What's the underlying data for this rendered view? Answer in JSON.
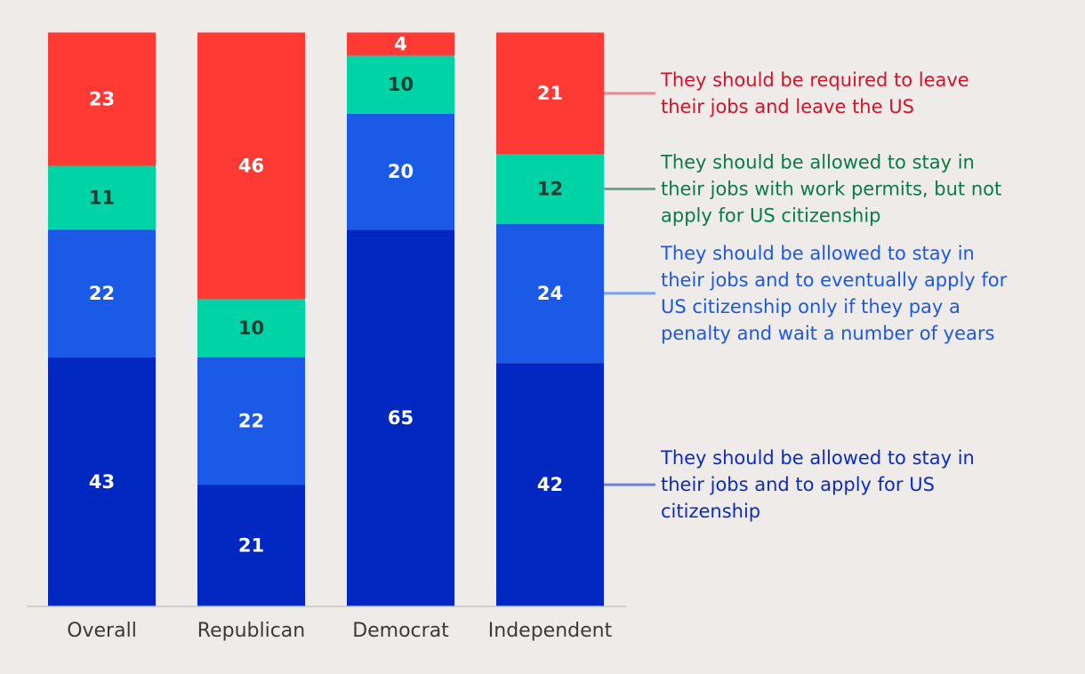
{
  "chart_data": {
    "type": "bar",
    "stacked": true,
    "title": "",
    "xlabel": "",
    "ylabel": "",
    "ylim": [
      0,
      100
    ],
    "categories": [
      "Overall",
      "Republican",
      "Democrat",
      "Independent"
    ],
    "series": [
      {
        "name": "They should be allowed to stay in their jobs and to apply for US citizenship",
        "color": "#0028c0",
        "legend_color": "#0c2cc0",
        "legend_line_color": "#6f82d6",
        "values": [
          43,
          21,
          65,
          42
        ],
        "legend_lines": [
          "They should be allowed to stay in",
          "their jobs and to apply for US",
          "citizenship"
        ]
      },
      {
        "name": "They should be allowed to stay in their jobs and to eventually apply for US citizenship only if they pay a penalty and wait a number of years",
        "color": "#1a5ae6",
        "legend_color": "#1a5ae6",
        "legend_line_color": "#7aa0ee",
        "values": [
          22,
          22,
          20,
          24
        ],
        "legend_lines": [
          "They should be allowed to stay in",
          "their jobs and to eventually apply for",
          "US citizenship only if they pay a",
          "penalty and wait a number of years"
        ]
      },
      {
        "name": "They should be allowed to stay in their jobs with work permits, but not apply for US citizenship",
        "color": "#00d4a6",
        "legend_color": "#0b7a48",
        "legend_line_color": "#6aa98a",
        "values": [
          11,
          10,
          10,
          12
        ],
        "legend_lines": [
          "They should be allowed to stay in",
          "their jobs with work permits, but not",
          "apply for US citizenship"
        ]
      },
      {
        "name": "They should be required to leave their jobs and leave the US",
        "color": "#ff3a35",
        "legend_color": "#d4142a",
        "legend_line_color": "#e48a92",
        "values": [
          23,
          46,
          4,
          21
        ],
        "legend_lines": [
          "They should be required to leave",
          "their jobs and leave the US"
        ]
      }
    ]
  }
}
